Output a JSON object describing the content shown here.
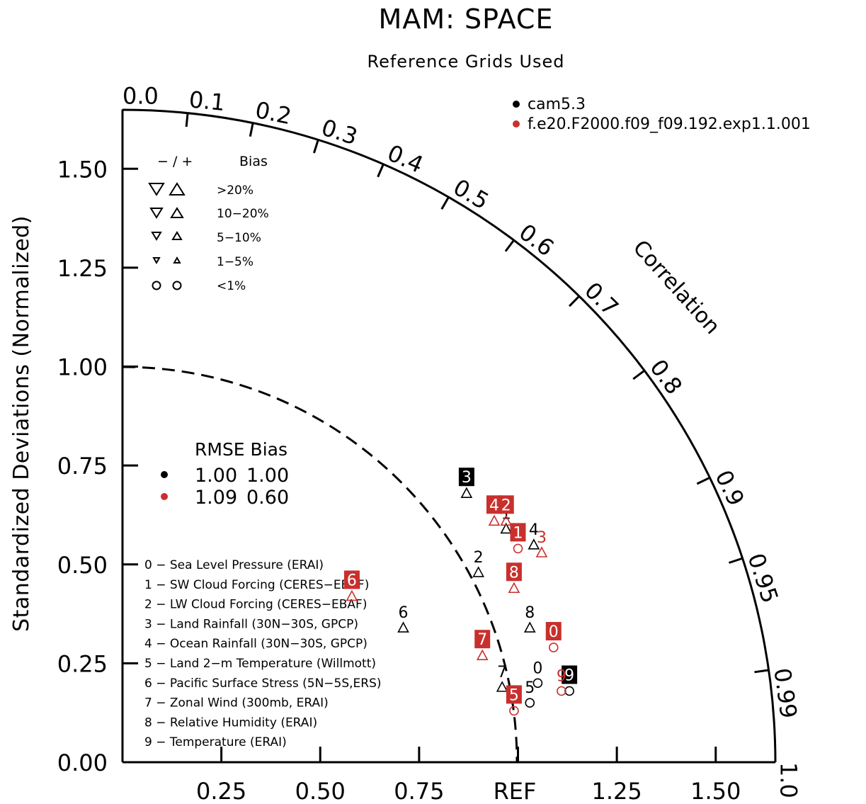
{
  "chart_data": {
    "type": "taylor",
    "title": "MAM: SPACE",
    "subtitle": "Reference Grids Used",
    "ylabel": "Standardized Deviations (Normalized)",
    "arc_label": "Correlation",
    "ref_label": "REF",
    "x_ticks": [
      "0.25",
      "0.50",
      "0.75",
      "1.25",
      "1.50"
    ],
    "y_ticks": [
      "0.00",
      "0.25",
      "0.50",
      "0.75",
      "1.00",
      "1.25",
      "1.50"
    ],
    "corr_ticks": [
      "0.0",
      "0.1",
      "0.2",
      "0.3",
      "0.4",
      "0.5",
      "0.6",
      "0.7",
      "0.8",
      "0.9",
      "0.95",
      "0.99",
      "1.0"
    ],
    "max_std": 1.65,
    "colors": {
      "cam": "#000000",
      "exp": "#c8302d"
    },
    "legend": {
      "series": [
        "cam5.3",
        "f.e20.F2000.f09_f09.192.exp1.1.001"
      ]
    },
    "bias_legend": {
      "header_sign": "− / +",
      "header_label": "Bias",
      "rows": [
        ">20%",
        "10−20%",
        "5−10%",
        "1−5%",
        "<1%"
      ]
    },
    "rmse_table": {
      "header": "RMSE Bias",
      "rows": [
        {
          "rmse": "1.00",
          "bias": "1.00"
        },
        {
          "rmse": "1.09",
          "bias": "0.60"
        }
      ]
    },
    "variables": [
      "0 − Sea Level Pressure (ERAI)",
      "1 − SW Cloud Forcing (CERES−EBAF)",
      "2 − LW Cloud Forcing (CERES−EBAF)",
      "3 − Land Rainfall (30N−30S, GPCP)",
      "4 − Ocean Rainfall (30N−30S, GPCP)",
      "5 − Land 2−m Temperature (Willmott)",
      "6 − Pacific Surface Stress (5N−5S,ERS)",
      "7 − Zonal Wind (300mb, ERAI)",
      "8 − Relative Humidity (ERAI)",
      "9 − Temperature (ERAI)"
    ],
    "series": [
      {
        "name": "cam5.3",
        "points": [
          {
            "id": "0",
            "x": 1.05,
            "y": 0.2,
            "marker": "circle",
            "boxed": false
          },
          {
            "id": "1",
            "x": 0.97,
            "y": 0.59,
            "marker": "up",
            "boxed": false
          },
          {
            "id": "2",
            "x": 0.9,
            "y": 0.48,
            "marker": "up",
            "boxed": false
          },
          {
            "id": "3",
            "x": 0.87,
            "y": 0.68,
            "marker": "up",
            "boxed": true
          },
          {
            "id": "4",
            "x": 1.04,
            "y": 0.55,
            "marker": "up",
            "boxed": false
          },
          {
            "id": "5",
            "x": 1.03,
            "y": 0.15,
            "marker": "circle",
            "boxed": false
          },
          {
            "id": "6",
            "x": 0.71,
            "y": 0.34,
            "marker": "up",
            "boxed": false
          },
          {
            "id": "7",
            "x": 0.96,
            "y": 0.19,
            "marker": "up",
            "boxed": false
          },
          {
            "id": "8",
            "x": 1.03,
            "y": 0.34,
            "marker": "up",
            "boxed": false
          },
          {
            "id": "9",
            "x": 1.13,
            "y": 0.18,
            "marker": "circle",
            "boxed": true
          }
        ]
      },
      {
        "name": "f.e20.F2000.f09_f09.192.exp1.1.001",
        "points": [
          {
            "id": "0",
            "x": 1.09,
            "y": 0.29,
            "marker": "circle",
            "boxed": true
          },
          {
            "id": "1",
            "x": 1.0,
            "y": 0.54,
            "marker": "circle",
            "boxed": true
          },
          {
            "id": "2",
            "x": 0.97,
            "y": 0.61,
            "marker": "up",
            "boxed": true
          },
          {
            "id": "3",
            "x": 1.06,
            "y": 0.53,
            "marker": "up",
            "boxed": false
          },
          {
            "id": "4",
            "x": 0.94,
            "y": 0.61,
            "marker": "up",
            "boxed": true
          },
          {
            "id": "5",
            "x": 0.99,
            "y": 0.13,
            "marker": "circle",
            "boxed": true
          },
          {
            "id": "6",
            "x": 0.58,
            "y": 0.42,
            "marker": "up",
            "boxed": true
          },
          {
            "id": "7",
            "x": 0.91,
            "y": 0.27,
            "marker": "up",
            "boxed": true
          },
          {
            "id": "8",
            "x": 0.99,
            "y": 0.44,
            "marker": "up",
            "boxed": true
          },
          {
            "id": "9",
            "x": 1.11,
            "y": 0.18,
            "marker": "circle",
            "boxed": false
          }
        ]
      }
    ]
  }
}
